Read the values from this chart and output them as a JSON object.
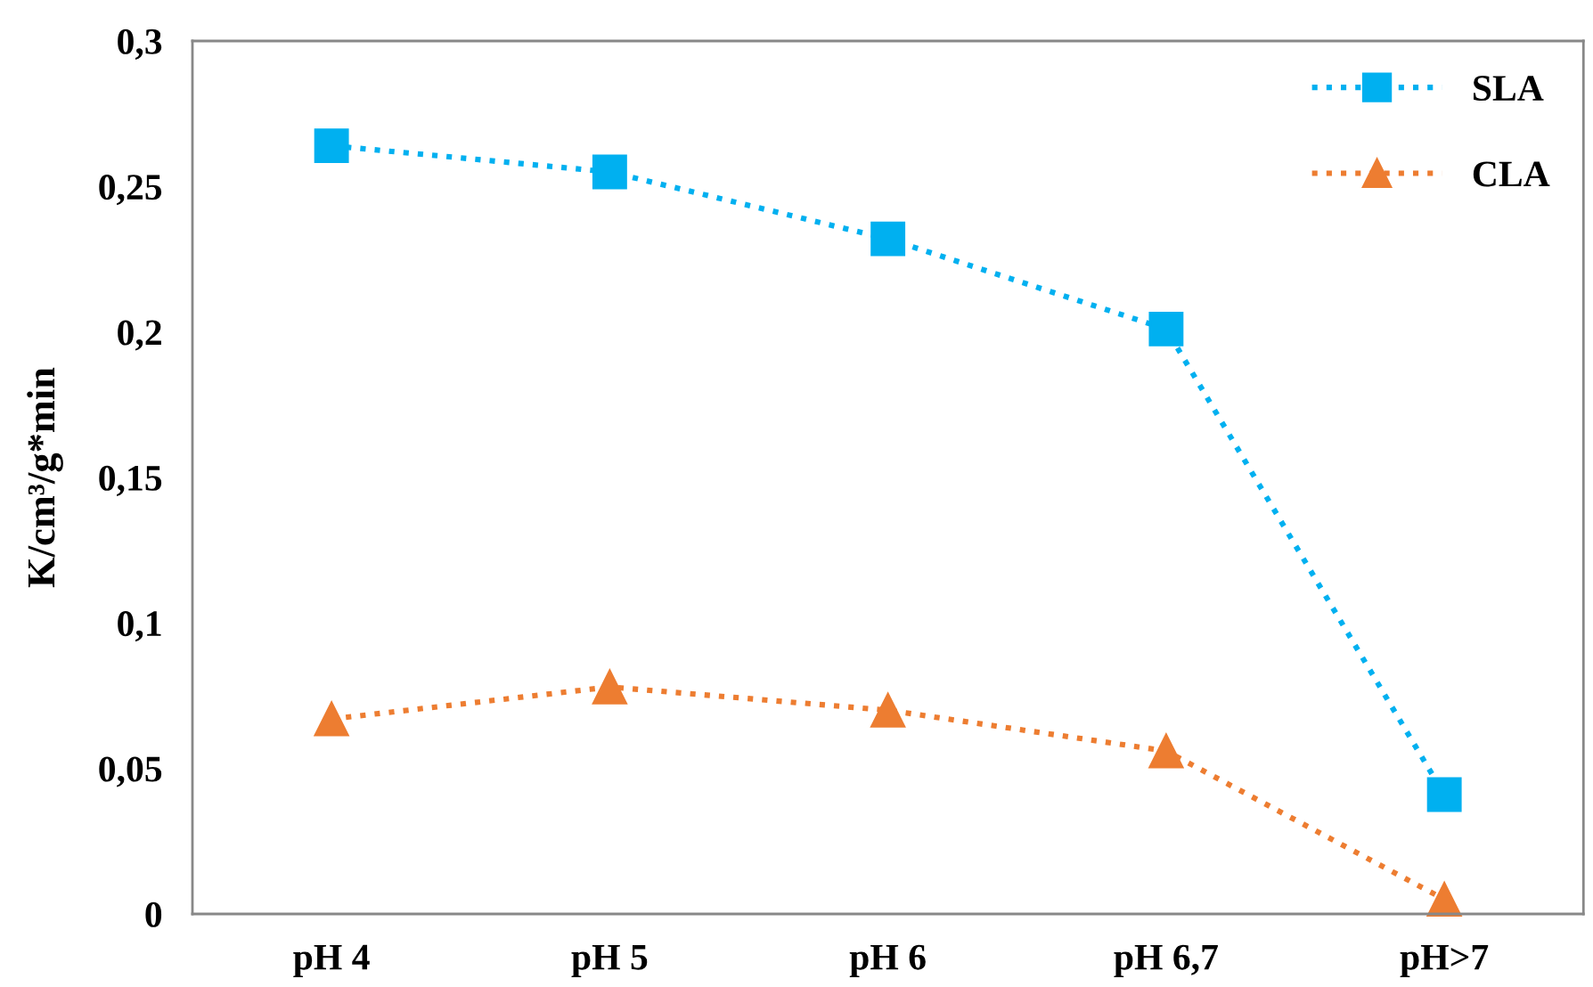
{
  "chart_data": {
    "type": "line",
    "ylabel": "K/cm³/g*min",
    "categories": [
      "pH 4",
      "pH 5",
      "pH 6",
      "pH 6,7",
      "pH>7"
    ],
    "series": [
      {
        "name": "SLA",
        "color": "#00b0f0",
        "marker": "square",
        "values": [
          0.264,
          0.255,
          0.232,
          0.201,
          0.041
        ]
      },
      {
        "name": "CLA",
        "color": "#ed7d31",
        "marker": "triangle",
        "values": [
          0.067,
          0.078,
          0.07,
          0.056,
          0.005
        ]
      }
    ],
    "ylim": [
      0,
      0.3
    ],
    "yticks": [
      {
        "value": 0,
        "label": "0"
      },
      {
        "value": 0.05,
        "label": "0,05"
      },
      {
        "value": 0.1,
        "label": "0,1"
      },
      {
        "value": 0.15,
        "label": "0,15"
      },
      {
        "value": 0.2,
        "label": "0,2"
      },
      {
        "value": 0.25,
        "label": "0,25"
      },
      {
        "value": 0.3,
        "label": "0,3"
      }
    ],
    "line_style": "dotted",
    "grid": false,
    "legend": "top right"
  }
}
